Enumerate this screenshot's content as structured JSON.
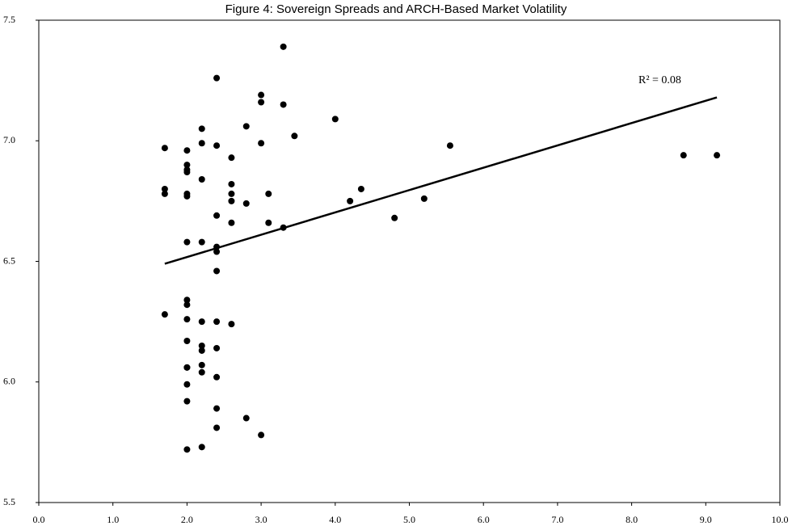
{
  "chart_data": {
    "type": "scatter",
    "title": "Figure 4: Sovereign Spreads and ARCH-Based Market Volatility",
    "annotation": "R² = 0.08",
    "color": "#000000",
    "x": [
      1.7,
      1.7,
      1.7,
      1.7,
      2.0,
      2.0,
      2.0,
      2.0,
      2.0,
      2.0,
      2.0,
      2.0,
      2.0,
      2.0,
      2.0,
      2.0,
      2.0,
      2.0,
      2.0,
      2.0,
      2.2,
      2.2,
      2.2,
      2.2,
      2.2,
      2.2,
      2.2,
      2.2,
      2.2,
      2.2,
      2.4,
      2.4,
      2.4,
      2.4,
      2.4,
      2.4,
      2.4,
      2.4,
      2.4,
      2.4,
      2.4,
      2.6,
      2.6,
      2.6,
      2.6,
      2.6,
      2.6,
      2.8,
      2.8,
      2.8,
      3.0,
      3.0,
      3.0,
      3.0,
      3.1,
      3.1,
      3.3,
      3.3,
      3.3,
      3.45,
      4.0,
      4.2,
      4.35,
      4.8,
      5.2,
      5.55,
      8.7,
      9.15
    ],
    "values": [
      6.97,
      6.8,
      6.78,
      6.28,
      6.96,
      6.9,
      6.88,
      6.87,
      6.78,
      6.77,
      6.58,
      6.34,
      6.32,
      6.26,
      6.17,
      6.06,
      5.99,
      5.92,
      5.72,
      6.06,
      7.05,
      6.99,
      6.84,
      6.58,
      6.25,
      6.15,
      6.13,
      6.07,
      6.04,
      5.73,
      7.26,
      6.98,
      6.69,
      6.56,
      6.54,
      6.46,
      6.25,
      6.14,
      6.02,
      5.89,
      5.81,
      6.93,
      6.82,
      6.78,
      6.75,
      6.66,
      6.24,
      7.06,
      6.74,
      5.85,
      7.19,
      7.16,
      6.99,
      5.78,
      6.78,
      6.66,
      7.39,
      7.15,
      6.64,
      7.02,
      7.09,
      6.75,
      6.8,
      6.68,
      6.76,
      6.98,
      6.94,
      6.94
    ],
    "trendline": {
      "x": [
        1.7,
        9.15
      ],
      "y": [
        6.49,
        7.18
      ]
    },
    "xlim": [
      0,
      10
    ],
    "xticks": [
      {
        "value": 0,
        "label": "0.0"
      },
      {
        "value": 1,
        "label": "1.0"
      },
      {
        "value": 2,
        "label": "2.0"
      },
      {
        "value": 3,
        "label": "3.0"
      },
      {
        "value": 4,
        "label": "4.0"
      },
      {
        "value": 5,
        "label": "5.0"
      },
      {
        "value": 6,
        "label": "6.0"
      },
      {
        "value": 7,
        "label": "7.0"
      },
      {
        "value": 8,
        "label": "8.0"
      },
      {
        "value": 9,
        "label": "9.0"
      },
      {
        "value": 10,
        "label": "10.0"
      }
    ],
    "ylim": [
      5.5,
      7.5
    ],
    "yticks": [
      5.5,
      {
        "value": 6,
        "label": "6.0"
      },
      6.5,
      {
        "value": 7,
        "label": "7.0"
      },
      7.5
    ],
    "grid": false
  }
}
